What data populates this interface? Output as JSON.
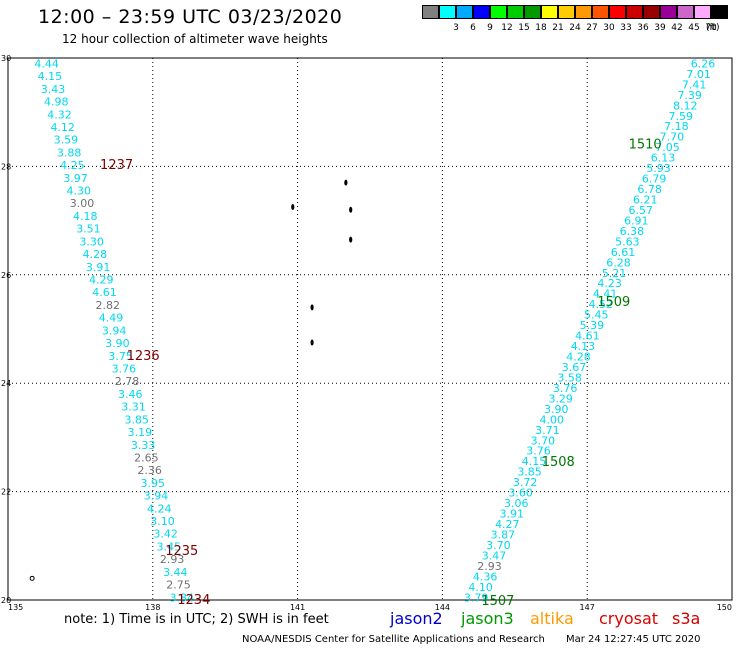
{
  "header": {
    "title": "12:00 – 23:59 UTC 03/23/2020",
    "subtitle": "12 hour collection of altimeter wave heights"
  },
  "legend": {
    "unit": "(ft)",
    "entries": [
      {
        "label": "",
        "color": "#808080"
      },
      {
        "label": "3",
        "color": "#00ffff"
      },
      {
        "label": "6",
        "color": "#00aaff"
      },
      {
        "label": "9",
        "color": "#0000ff"
      },
      {
        "label": "12",
        "color": "#00ff00"
      },
      {
        "label": "15",
        "color": "#00cc00"
      },
      {
        "label": "18",
        "color": "#009900"
      },
      {
        "label": "21",
        "color": "#ffff00"
      },
      {
        "label": "24",
        "color": "#ffcc00"
      },
      {
        "label": "27",
        "color": "#ff9900"
      },
      {
        "label": "30",
        "color": "#ff5500"
      },
      {
        "label": "33",
        "color": "#ff0000"
      },
      {
        "label": "36",
        "color": "#cc0000"
      },
      {
        "label": "39",
        "color": "#990000"
      },
      {
        "label": "42",
        "color": "#990099"
      },
      {
        "label": "45",
        "color": "#cc66cc"
      },
      {
        "label": "70",
        "color": "#ffaaff"
      },
      {
        "label": "",
        "color": "#000000"
      }
    ]
  },
  "map": {
    "lon_range": [
      135,
      150
    ],
    "lat_range": [
      20,
      30
    ],
    "lon_ticks": [
      "135",
      "138",
      "141",
      "144",
      "147",
      "150"
    ],
    "lat_ticks": [
      "20",
      "22",
      "24",
      "26",
      "28",
      "30"
    ],
    "colors": {
      "cyan": "#00d8f0",
      "gray": "#707070",
      "pass_red": "#800000",
      "pass_green": "#007700"
    },
    "west_track": {
      "start": [
        135.8,
        29.9
      ],
      "end": [
        138.6,
        20.05
      ],
      "values": [
        "4.44",
        "4.15",
        "3.43",
        "4.98",
        "4.32",
        "4.12",
        "3.59",
        "3.88",
        "4.25",
        "3.97",
        "4.30",
        "3.00",
        "4.18",
        "3.51",
        "3.30",
        "4.28",
        "3.91",
        "4.29",
        "4.61",
        "2.82",
        "4.49",
        "3.94",
        "3.90",
        "3.75",
        "3.76",
        "2.78",
        "3.46",
        "3.31",
        "3.85",
        "3.19",
        "3.33",
        "2.65",
        "2.36",
        "3.95",
        "3.94",
        "4.24",
        "3.10",
        "3.42",
        "3.45",
        "2.93",
        "3.44",
        "2.75",
        "3.84"
      ],
      "gray_values": [
        "3.00",
        "2.82",
        "2.78",
        "2.65",
        "2.36",
        "2.93",
        "2.75"
      ]
    },
    "east_track": {
      "start": [
        149.4,
        29.9
      ],
      "end": [
        144.7,
        20.05
      ],
      "values": [
        "6.26",
        "7.01",
        "7.41",
        "7.39",
        "8.12",
        "7.59",
        "7.18",
        "7.70",
        "7.05",
        "6.13",
        "5.93",
        "6.79",
        "6.78",
        "6.21",
        "6.57",
        "6.91",
        "6.38",
        "5.63",
        "6.61",
        "6.28",
        "5.21",
        "4.23",
        "4.41",
        "4.52",
        "5.45",
        "5.39",
        "4.61",
        "4.13",
        "4.28",
        "3.67",
        "3.58",
        "3.76",
        "3.29",
        "3.90",
        "4.00",
        "3.71",
        "3.70",
        "3.76",
        "4.15",
        "3.85",
        "3.72",
        "3.60",
        "3.06",
        "3.91",
        "4.27",
        "3.87",
        "3.70",
        "3.47",
        "2.93",
        "4.36",
        "4.10",
        "3.79"
      ],
      "gray_values": [
        "2.93"
      ]
    },
    "pass_labels": [
      {
        "text": "1237",
        "lon": 137.25,
        "lat": 28.03,
        "color": "pass_red"
      },
      {
        "text": "1236",
        "lon": 137.8,
        "lat": 24.5,
        "color": "pass_red"
      },
      {
        "text": "1235",
        "lon": 138.6,
        "lat": 20.9,
        "color": "pass_red"
      },
      {
        "text": "1234",
        "lon": 138.85,
        "lat": 20.0,
        "color": "pass_red"
      },
      {
        "text": "1510",
        "lon": 148.2,
        "lat": 28.4,
        "color": "pass_green"
      },
      {
        "text": "1509",
        "lon": 147.55,
        "lat": 25.5,
        "color": "pass_green"
      },
      {
        "text": "1508",
        "lon": 146.4,
        "lat": 22.55,
        "color": "pass_green"
      },
      {
        "text": "1507",
        "lon": 145.15,
        "lat": 19.98,
        "color": "pass_green"
      }
    ],
    "islands": [
      [
        142.0,
        27.7
      ],
      [
        142.1,
        27.2
      ],
      [
        142.1,
        26.65
      ],
      [
        140.9,
        27.25
      ],
      [
        141.3,
        25.4
      ],
      [
        141.3,
        24.75
      ],
      [
        135.5,
        20.4
      ]
    ]
  },
  "note": "note: 1) Time is in UTC; 2) SWH is in feet",
  "satellites": [
    {
      "name": "jason2",
      "color": "#0000cc"
    },
    {
      "name": "jason3",
      "color": "#009900"
    },
    {
      "name": "altika",
      "color": "#ff9900"
    },
    {
      "name": "cryosat",
      "color": "#dd0000"
    },
    {
      "name": "s3a",
      "color": "#cc0000"
    }
  ],
  "footer": "NOAA/NESDIS Center for Satellite Applications and Research",
  "timestamp": "Mar 24 12:27:45 UTC 2020"
}
